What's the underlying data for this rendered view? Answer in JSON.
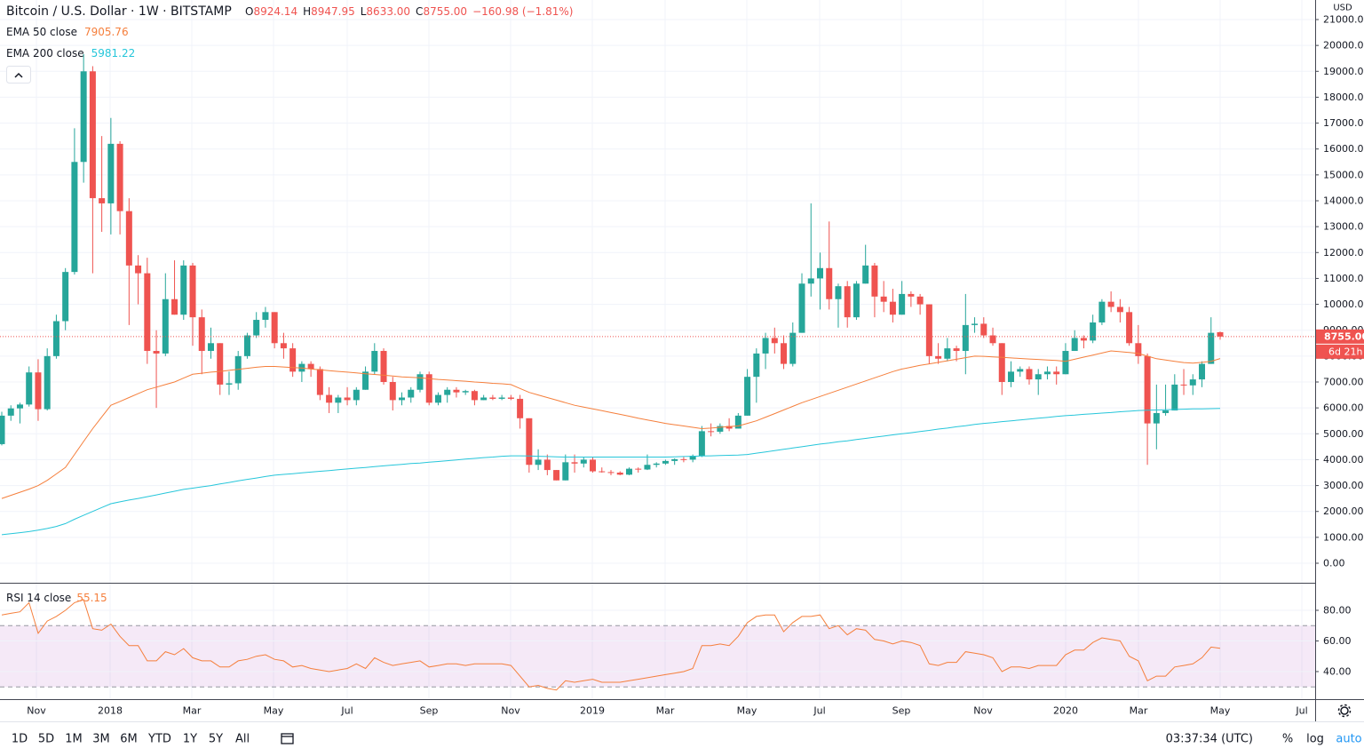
{
  "header": {
    "symbol": "Bitcoin / U.S. Dollar · 1W · BITSTAMP",
    "ohlc": [
      {
        "key": "O",
        "value": "8924.14"
      },
      {
        "key": "H",
        "value": "8947.95"
      },
      {
        "key": "L",
        "value": "8633.00"
      },
      {
        "key": "C",
        "value": "8755.00"
      }
    ],
    "change": "−160.98 (−1.81%)"
  },
  "chart_data": [
    {
      "type": "candlestick",
      "currency": "USD",
      "up_color": "#26a69a",
      "down_color": "#ef5350",
      "candles": {
        "open": [
          4600,
          5700,
          5980,
          6130,
          7370,
          5950,
          8000,
          9350,
          11250,
          15500,
          19000,
          14100,
          13900,
          16200,
          13600,
          11500,
          11200,
          8200,
          8100,
          10200,
          9600,
          11500,
          9500,
          8200,
          8500,
          6900,
          6950,
          8000,
          8800,
          9400,
          9700,
          8500,
          8300,
          7400,
          7700,
          7500,
          6500,
          6200,
          6400,
          6300,
          6700,
          7400,
          8200,
          7000,
          6300,
          6400,
          6700,
          7300,
          6200,
          6500,
          6700,
          6600,
          6650,
          6300,
          6400,
          6350,
          6400,
          6350,
          5600,
          3800,
          4000,
          3600,
          3200,
          3900,
          3850,
          4000,
          3550,
          3520,
          3500,
          3420,
          3650,
          3620,
          3800,
          3850,
          3950,
          4020,
          4000,
          4150,
          5100,
          5080,
          5300,
          5200,
          5700,
          7200,
          8100,
          8700,
          8500,
          7700,
          8900,
          10800,
          11000,
          11400,
          10200,
          10700,
          9500,
          10800,
          11500,
          10300,
          10100,
          9600,
          10400,
          10300,
          10000,
          8000,
          7900,
          8300,
          8200,
          9200,
          9250,
          8800,
          8500,
          7000,
          7400,
          7500,
          7100,
          7300,
          7400,
          7300,
          8200,
          8700,
          8600,
          9300,
          10100,
          9900,
          9700,
          8500,
          8000,
          5400,
          5800,
          5900,
          6900,
          6870,
          7100,
          7700,
          8924.14
        ],
        "high": [
          5850,
          6100,
          6200,
          7600,
          7880,
          8300,
          9600,
          11400,
          16800,
          19666,
          19200,
          16500,
          17200,
          16300,
          14100,
          11900,
          11800,
          9000,
          11200,
          11700,
          11700,
          11600,
          9800,
          9100,
          8500,
          7400,
          8200,
          8900,
          9700,
          9900,
          9700,
          8900,
          8500,
          7800,
          7800,
          7600,
          6800,
          6500,
          6800,
          6800,
          7600,
          8500,
          8300,
          7200,
          6600,
          6800,
          7400,
          7400,
          6600,
          6800,
          6800,
          6700,
          6700,
          6500,
          6500,
          6500,
          6500,
          6500,
          5600,
          4400,
          4200,
          3600,
          4200,
          4200,
          4100,
          4100,
          3700,
          3600,
          3550,
          3700,
          3700,
          4200,
          3900,
          4000,
          4050,
          4100,
          4200,
          5300,
          5400,
          5400,
          5600,
          5800,
          7500,
          8300,
          8900,
          9100,
          8800,
          9300,
          11200,
          13900,
          12000,
          13200,
          10800,
          10900,
          10900,
          12300,
          11600,
          10900,
          10600,
          10900,
          10500,
          10400,
          10000,
          8500,
          8700,
          8400,
          10400,
          9500,
          9500,
          9100,
          8500,
          7800,
          7600,
          7600,
          7500,
          7600,
          7600,
          8500,
          9000,
          8800,
          9600,
          10200,
          10500,
          10200,
          9900,
          9200,
          8100,
          6900,
          6900,
          7300,
          7500,
          7300,
          7800,
          9500,
          8947.95
        ],
        "low": [
          4550,
          5500,
          5400,
          6050,
          5500,
          5900,
          7900,
          9000,
          11150,
          14700,
          11200,
          12800,
          12700,
          12700,
          9200,
          10000,
          7700,
          6000,
          8000,
          9600,
          9400,
          8400,
          7300,
          7900,
          6500,
          6500,
          6700,
          7900,
          8700,
          9100,
          8300,
          7900,
          7200,
          7000,
          7200,
          6300,
          5800,
          5800,
          6100,
          6100,
          6700,
          7300,
          6900,
          5900,
          6100,
          6200,
          6600,
          6100,
          6100,
          6200,
          6400,
          6500,
          6100,
          6300,
          6300,
          6300,
          6300,
          5200,
          3500,
          3600,
          3400,
          3200,
          3200,
          3500,
          3700,
          3500,
          3500,
          3400,
          3400,
          3400,
          3500,
          3600,
          3700,
          3800,
          3800,
          3900,
          3900,
          4100,
          4900,
          5000,
          5100,
          5200,
          5700,
          6200,
          7500,
          8100,
          7500,
          7600,
          8900,
          10300,
          9800,
          9800,
          9100,
          9100,
          9400,
          10800,
          9500,
          9700,
          9300,
          9600,
          9900,
          9600,
          7700,
          7700,
          7800,
          7800,
          7300,
          8900,
          8700,
          8400,
          6500,
          6800,
          7200,
          6900,
          6500,
          7100,
          6900,
          7300,
          8200,
          8300,
          8500,
          9200,
          9700,
          9300,
          8400,
          7700,
          3800,
          4400,
          5700,
          5900,
          6500,
          6500,
          6800,
          7700,
          8633
        ],
        "close": [
          5700,
          5980,
          6130,
          7370,
          5950,
          8000,
          9350,
          11250,
          15500,
          19000,
          14100,
          13900,
          16200,
          13600,
          11500,
          11200,
          8200,
          8100,
          10200,
          9600,
          11500,
          9500,
          8200,
          8500,
          6900,
          6950,
          8000,
          8800,
          9400,
          9700,
          8500,
          8300,
          7400,
          7700,
          7500,
          6500,
          6200,
          6400,
          6300,
          6700,
          7400,
          8200,
          7000,
          6300,
          6400,
          6700,
          7300,
          6200,
          6500,
          6700,
          6600,
          6650,
          6300,
          6400,
          6350,
          6400,
          6350,
          5600,
          3800,
          4000,
          3600,
          3200,
          3900,
          3850,
          4000,
          3550,
          3520,
          3500,
          3420,
          3650,
          3620,
          3800,
          3850,
          3950,
          4020,
          4000,
          4150,
          5100,
          5080,
          5300,
          5200,
          5700,
          7200,
          8100,
          8700,
          8500,
          7700,
          8900,
          10800,
          11000,
          11400,
          10200,
          10700,
          9500,
          10800,
          11500,
          10300,
          10100,
          9600,
          10400,
          10300,
          10000,
          8000,
          7900,
          8300,
          8200,
          9200,
          9250,
          8800,
          8500,
          7000,
          7400,
          7500,
          7100,
          7300,
          7400,
          7300,
          8200,
          8700,
          8600,
          9300,
          10100,
          9900,
          9700,
          8500,
          8000,
          5400,
          5800,
          5900,
          6900,
          6870,
          7100,
          7700,
          8900,
          8755
        ]
      },
      "series": [
        {
          "name": "EMA 50 close",
          "color": "#f57f3c",
          "values": [
            2500,
            2620,
            2740,
            2860,
            3000,
            3200,
            3450,
            3700,
            4200,
            4700,
            5200,
            5650,
            6100,
            6250,
            6400,
            6550,
            6700,
            6800,
            6900,
            7000,
            7150,
            7300,
            7340,
            7380,
            7410,
            7450,
            7490,
            7530,
            7570,
            7600,
            7600,
            7580,
            7560,
            7540,
            7500,
            7470,
            7440,
            7410,
            7380,
            7350,
            7320,
            7290,
            7260,
            7230,
            7200,
            7180,
            7160,
            7130,
            7100,
            7080,
            7050,
            7030,
            7000,
            6980,
            6950,
            6930,
            6900,
            6750,
            6600,
            6500,
            6400,
            6300,
            6200,
            6100,
            6030,
            5960,
            5890,
            5820,
            5750,
            5680,
            5600,
            5530,
            5470,
            5400,
            5350,
            5300,
            5250,
            5200,
            5220,
            5250,
            5280,
            5300,
            5400,
            5500,
            5640,
            5780,
            5920,
            6060,
            6200,
            6320,
            6440,
            6560,
            6680,
            6800,
            6920,
            7040,
            7160,
            7280,
            7400,
            7500,
            7570,
            7640,
            7700,
            7760,
            7820,
            7880,
            7940,
            8000,
            7990,
            7970,
            7950,
            7930,
            7910,
            7890,
            7870,
            7850,
            7830,
            7800,
            7880,
            7960,
            8040,
            8120,
            8200,
            8170,
            8140,
            8100,
            8000,
            7900,
            7850,
            7800,
            7750,
            7730,
            7760,
            7800,
            7905.76
          ]
        },
        {
          "name": "EMA 200 close",
          "color": "#26c6da",
          "values": [
            1100,
            1140,
            1180,
            1220,
            1280,
            1340,
            1420,
            1530,
            1700,
            1850,
            2000,
            2150,
            2300,
            2370,
            2440,
            2500,
            2570,
            2640,
            2710,
            2780,
            2850,
            2900,
            2950,
            3000,
            3060,
            3120,
            3180,
            3240,
            3290,
            3350,
            3400,
            3430,
            3460,
            3490,
            3520,
            3550,
            3580,
            3610,
            3640,
            3670,
            3700,
            3730,
            3760,
            3790,
            3820,
            3850,
            3870,
            3900,
            3930,
            3960,
            3990,
            4020,
            4050,
            4080,
            4100,
            4130,
            4150,
            4150,
            4140,
            4130,
            4120,
            4110,
            4100,
            4100,
            4100,
            4100,
            4100,
            4100,
            4100,
            4100,
            4100,
            4100,
            4100,
            4100,
            4110,
            4120,
            4130,
            4140,
            4150,
            4160,
            4170,
            4180,
            4200,
            4250,
            4300,
            4350,
            4400,
            4450,
            4500,
            4550,
            4600,
            4640,
            4690,
            4730,
            4780,
            4820,
            4870,
            4910,
            4960,
            5000,
            5040,
            5090,
            5130,
            5180,
            5220,
            5270,
            5310,
            5360,
            5400,
            5430,
            5470,
            5500,
            5530,
            5570,
            5600,
            5630,
            5670,
            5700,
            5720,
            5750,
            5770,
            5800,
            5820,
            5850,
            5870,
            5900,
            5910,
            5920,
            5930,
            5940,
            5950,
            5960,
            5965,
            5970,
            5981.22
          ]
        }
      ],
      "ylim": [
        -755,
        21755
      ],
      "yticks": [
        {
          "value": 0,
          "label": "0.00"
        },
        {
          "value": 1000,
          "label": "1000.00"
        },
        {
          "value": 2000,
          "label": "2000.00"
        },
        {
          "value": 3000,
          "label": "3000.00"
        },
        {
          "value": 4000,
          "label": "4000.00"
        },
        {
          "value": 5000,
          "label": "5000.00"
        },
        {
          "value": 6000,
          "label": "6000.00"
        },
        {
          "value": 7000,
          "label": "7000.00"
        },
        {
          "value": 8000,
          "label": "8000.00"
        },
        {
          "value": 9000,
          "label": "9000.00"
        },
        {
          "value": 10000,
          "label": "10000.00"
        },
        {
          "value": 11000,
          "label": "11000.00"
        },
        {
          "value": 12000,
          "label": "12000.00"
        },
        {
          "value": 13000,
          "label": "13000.00"
        },
        {
          "value": 14000,
          "label": "14000.00"
        },
        {
          "value": 15000,
          "label": "15000.00"
        },
        {
          "value": 16000,
          "label": "16000.00"
        },
        {
          "value": 17000,
          "label": "17000.00"
        },
        {
          "value": 18000,
          "label": "18000.00"
        },
        {
          "value": 19000,
          "label": "19000.00"
        },
        {
          "value": 20000,
          "label": "20000.00"
        },
        {
          "value": 21000,
          "label": "21000.00"
        }
      ],
      "x_labels": [
        "Nov",
        "2018",
        "Mar",
        "May",
        "Jul",
        "Sep",
        "Nov",
        "2019",
        "Mar",
        "May",
        "Jul",
        "Sep",
        "Nov",
        "2020",
        "Mar",
        "May",
        "Jul"
      ],
      "last_price_label": "8755.00",
      "countdown": "6d 21h"
    },
    {
      "type": "line",
      "name": "RSI 14 close",
      "color": "#f57f3c",
      "values": [
        77,
        78,
        79,
        85,
        65,
        73,
        76,
        80,
        85,
        87,
        68,
        67,
        71,
        63,
        57,
        57,
        47,
        47,
        53,
        51,
        55,
        49,
        47,
        47,
        43,
        43,
        47,
        48,
        50,
        51,
        48,
        47,
        43,
        44,
        42,
        41,
        40,
        41,
        42,
        45,
        42,
        49,
        46,
        44,
        45,
        46,
        47,
        43,
        44,
        45,
        45,
        44,
        45,
        45,
        45,
        45,
        44,
        37,
        30,
        31,
        29,
        28,
        34,
        33,
        34,
        35,
        33,
        33,
        33,
        34,
        35,
        36,
        37,
        38,
        39,
        40,
        42,
        57,
        57,
        58,
        57,
        63,
        72,
        76,
        77,
        77,
        66,
        72,
        76,
        76,
        77,
        68,
        70,
        64,
        68,
        67,
        61,
        60,
        58,
        60,
        59,
        57,
        45,
        44,
        46,
        46,
        53,
        52,
        51,
        49,
        40,
        43,
        43,
        42,
        44,
        44,
        44,
        51,
        54,
        54,
        59,
        62,
        61,
        60,
        50,
        47,
        34,
        37,
        37,
        43,
        44,
        45,
        49,
        56,
        55.15
      ],
      "band": [
        30,
        70
      ],
      "band_color": "#9c27b0",
      "ylim": [
        22,
        97.4
      ],
      "yticks": [
        {
          "value": 40,
          "label": "40.00"
        },
        {
          "value": 60,
          "label": "60.00"
        },
        {
          "value": 80,
          "label": "80.00"
        }
      ]
    }
  ],
  "toolbar": {
    "ranges": [
      "1D",
      "5D",
      "1M",
      "3M",
      "6M",
      "YTD",
      "1Y",
      "5Y",
      "All"
    ],
    "time": "03:37:34 (UTC)",
    "options": [
      "%",
      "log",
      "auto"
    ]
  }
}
